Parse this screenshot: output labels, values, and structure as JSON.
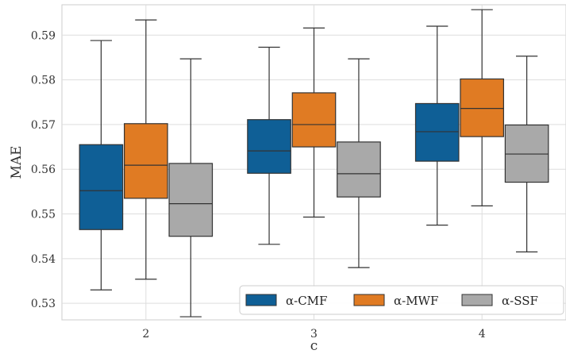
{
  "chart_data": {
    "type": "boxplot",
    "xlabel": "c",
    "ylabel": "MAE",
    "ylim": [
      0.5263,
      0.5968
    ],
    "yticks": [
      0.53,
      0.54,
      0.55,
      0.56,
      0.57,
      0.58,
      0.59
    ],
    "ytick_labels": [
      "0.53",
      "0.54",
      "0.55",
      "0.56",
      "0.57",
      "0.58",
      "0.59"
    ],
    "categories": [
      "2",
      "3",
      "4"
    ],
    "grid": true,
    "legend_position": "bottom-right",
    "series": [
      {
        "name": "α-CMF",
        "color": "#0f5f96",
        "boxes": [
          {
            "whislo": 0.533,
            "q1": 0.5465,
            "med": 0.5552,
            "q3": 0.5655,
            "whishi": 0.5888
          },
          {
            "whislo": 0.5432,
            "q1": 0.5591,
            "med": 0.5641,
            "q3": 0.5711,
            "whishi": 0.5873
          },
          {
            "whislo": 0.5475,
            "q1": 0.5618,
            "med": 0.5684,
            "q3": 0.5747,
            "whishi": 0.592
          }
        ]
      },
      {
        "name": "α-MWF",
        "color": "#e07b23",
        "boxes": [
          {
            "whislo": 0.5354,
            "q1": 0.5535,
            "med": 0.5609,
            "q3": 0.5702,
            "whishi": 0.5934
          },
          {
            "whislo": 0.5493,
            "q1": 0.565,
            "med": 0.57,
            "q3": 0.5771,
            "whishi": 0.5916
          },
          {
            "whislo": 0.5518,
            "q1": 0.5673,
            "med": 0.5736,
            "q3": 0.5802,
            "whishi": 0.5957
          }
        ]
      },
      {
        "name": "α-SSF",
        "color": "#a9a9a9",
        "boxes": [
          {
            "whislo": 0.527,
            "q1": 0.545,
            "med": 0.5523,
            "q3": 0.5613,
            "whishi": 0.5847
          },
          {
            "whislo": 0.538,
            "q1": 0.5538,
            "med": 0.559,
            "q3": 0.5661,
            "whishi": 0.5847
          },
          {
            "whislo": 0.5415,
            "q1": 0.5571,
            "med": 0.5634,
            "q3": 0.5699,
            "whishi": 0.5853
          }
        ]
      }
    ]
  }
}
